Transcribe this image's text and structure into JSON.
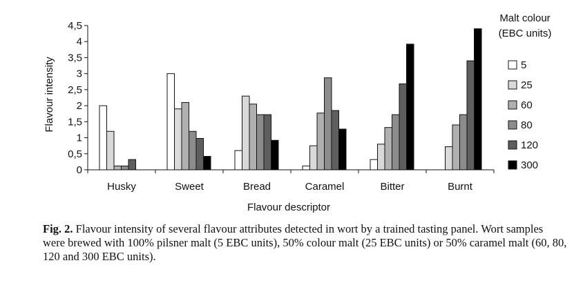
{
  "chart_data": {
    "type": "bar",
    "title": "",
    "xlabel": "Flavour descriptor",
    "ylabel": "Flavour intensity",
    "ylim": [
      0,
      4.5
    ],
    "yticks": [
      "0",
      "0,5",
      "1",
      "1,5",
      "2",
      "2,5",
      "3",
      "3,5",
      "4",
      "4,5"
    ],
    "categories": [
      "Husky",
      "Sweet",
      "Bread",
      "Caramel",
      "Bitter",
      "Burnt"
    ],
    "legend_title_line1": "Malt colour",
    "legend_title_line2": "(EBC units)",
    "series": [
      {
        "name": "5",
        "color": "#ffffff",
        "values": [
          2.0,
          3.0,
          0.6,
          0.12,
          0.32,
          0.0
        ]
      },
      {
        "name": "25",
        "color": "#d9d9d9",
        "values": [
          1.2,
          1.9,
          2.3,
          0.75,
          0.8,
          0.72
        ]
      },
      {
        "name": "60",
        "color": "#b0b0b0",
        "values": [
          0.12,
          2.1,
          2.05,
          1.77,
          1.32,
          1.4
        ]
      },
      {
        "name": "80",
        "color": "#8c8c8c",
        "values": [
          0.12,
          1.2,
          1.72,
          2.87,
          1.72,
          1.72
        ]
      },
      {
        "name": "120",
        "color": "#5e5e5e",
        "values": [
          0.32,
          0.98,
          1.72,
          1.85,
          2.68,
          3.4
        ]
      },
      {
        "name": "300",
        "color": "#000000",
        "values": [
          0.0,
          0.42,
          0.92,
          1.27,
          3.92,
          4.4
        ]
      }
    ]
  },
  "caption": {
    "label": "Fig. 2.",
    "text": " Flavour intensity of several flavour attributes detected in wort by a trained tasting panel. Wort samples were brewed with 100% pilsner malt (5 EBC units), 50% colour malt (25 EBC units) or 50% caramel malt (60, 80, 120 and 300 EBC units)."
  }
}
